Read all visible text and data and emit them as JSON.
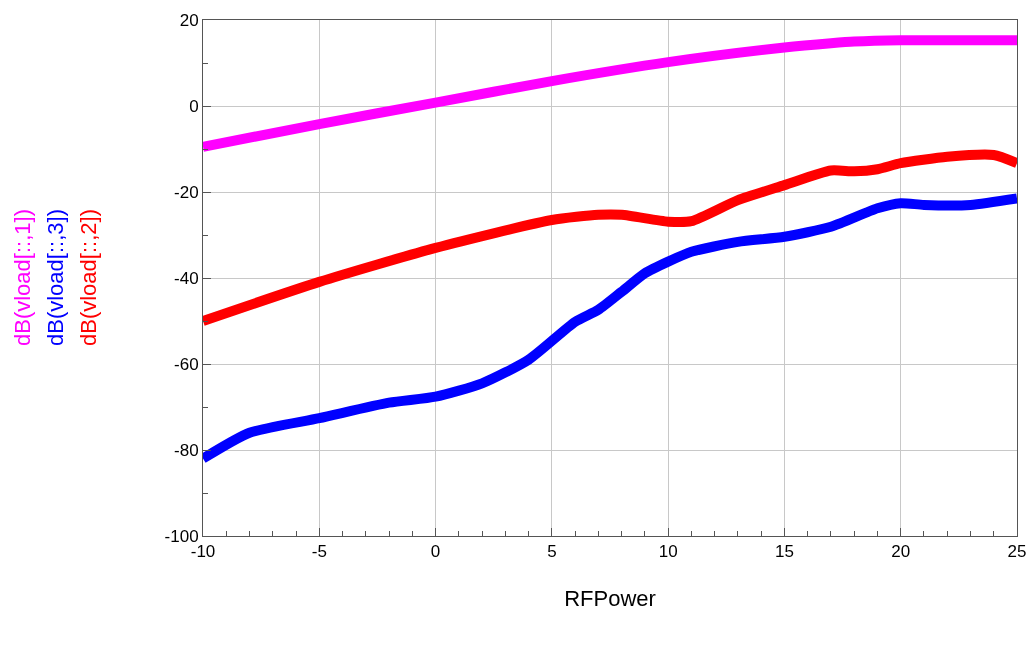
{
  "chart_data": {
    "type": "line",
    "xlabel": "RFPower",
    "xlim": [
      -10,
      25
    ],
    "xticks": [
      -10,
      -5,
      0,
      5,
      10,
      15,
      20,
      25
    ],
    "ylim": [
      -100,
      20
    ],
    "yticks": [
      -100,
      -80,
      -60,
      -40,
      -20,
      0,
      20
    ],
    "grid": true,
    "line_style": "solid",
    "marker": "none",
    "series": [
      {
        "name": "dB(vload[::,1])",
        "color": "#ff00ff",
        "x": [
          -10,
          -5,
          0,
          5,
          10,
          15,
          17,
          18,
          20,
          25
        ],
        "values": [
          -9.5,
          -4.2,
          0.8,
          5.8,
          10.2,
          13.6,
          14.6,
          15,
          15.3,
          15.3
        ]
      },
      {
        "name": "dB(vload[::,3])",
        "color": "#0000ff",
        "x": [
          -10,
          -8,
          -5,
          -2,
          0,
          2,
          4,
          6,
          7,
          8,
          9,
          10,
          11,
          13,
          15,
          17,
          19,
          20,
          21,
          23,
          25
        ],
        "values": [
          -82,
          -76,
          -72.6,
          -69,
          -67.6,
          -64.5,
          -59,
          -50.2,
          -47.4,
          -43.2,
          -38.9,
          -36.2,
          -33.9,
          -31.6,
          -30.4,
          -28.1,
          -23.8,
          -22.6,
          -23,
          -23,
          -21.5
        ]
      },
      {
        "name": "dB(vload[::,2])",
        "color": "#ff0000",
        "x": [
          -10,
          -5,
          0,
          5,
          7,
          8,
          10,
          11,
          13,
          15,
          17,
          18,
          19,
          20,
          22,
          24,
          25
        ],
        "values": [
          -50,
          -40.9,
          -33,
          -26.5,
          -25.3,
          -25.3,
          -26.9,
          -26.8,
          -21.9,
          -18.4,
          -15,
          -15.2,
          -14.7,
          -13.3,
          -11.8,
          -11.4,
          -13.3
        ]
      }
    ]
  }
}
